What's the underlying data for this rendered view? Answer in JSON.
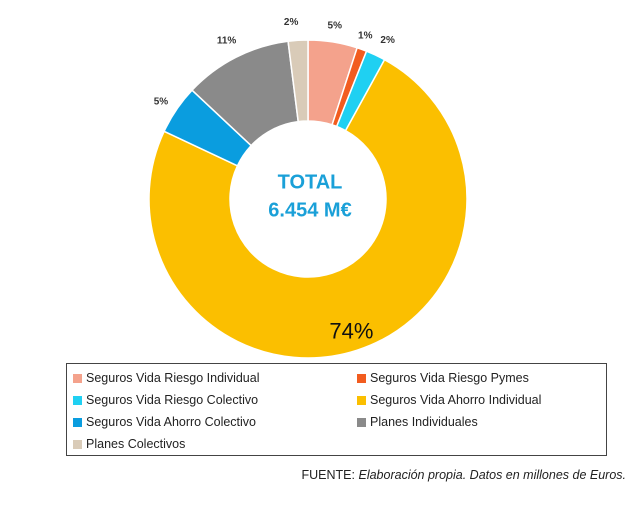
{
  "chart_data": {
    "type": "pie",
    "donut": true,
    "center_title": "TOTAL",
    "center_value": "6.454 M€",
    "center_color": "#1aa0d8",
    "categories": [
      "Seguros Vida Riesgo Individual",
      "Seguros Vida Riesgo Pymes",
      "Seguros Vida Riesgo Colectivo",
      "Seguros Vida Ahorro Individual",
      "Seguros Vida Ahorro Colectivo",
      "Planes Individuales",
      "Planes Colectivos"
    ],
    "values": [
      5,
      1,
      2,
      74,
      5,
      11,
      2
    ],
    "labels": [
      "5%",
      "1%",
      "2%",
      "74%",
      "5%",
      "11%",
      "2%"
    ],
    "colors": [
      "#f4a28c",
      "#f25c1f",
      "#1fd0f2",
      "#fbbf00",
      "#0a9ddf",
      "#8a8a8a",
      "#d9cbb8"
    ],
    "legend_position": "bottom"
  },
  "source": {
    "label": "FUENTE:",
    "note": "Elaboración propia. Datos en millones de Euros."
  }
}
